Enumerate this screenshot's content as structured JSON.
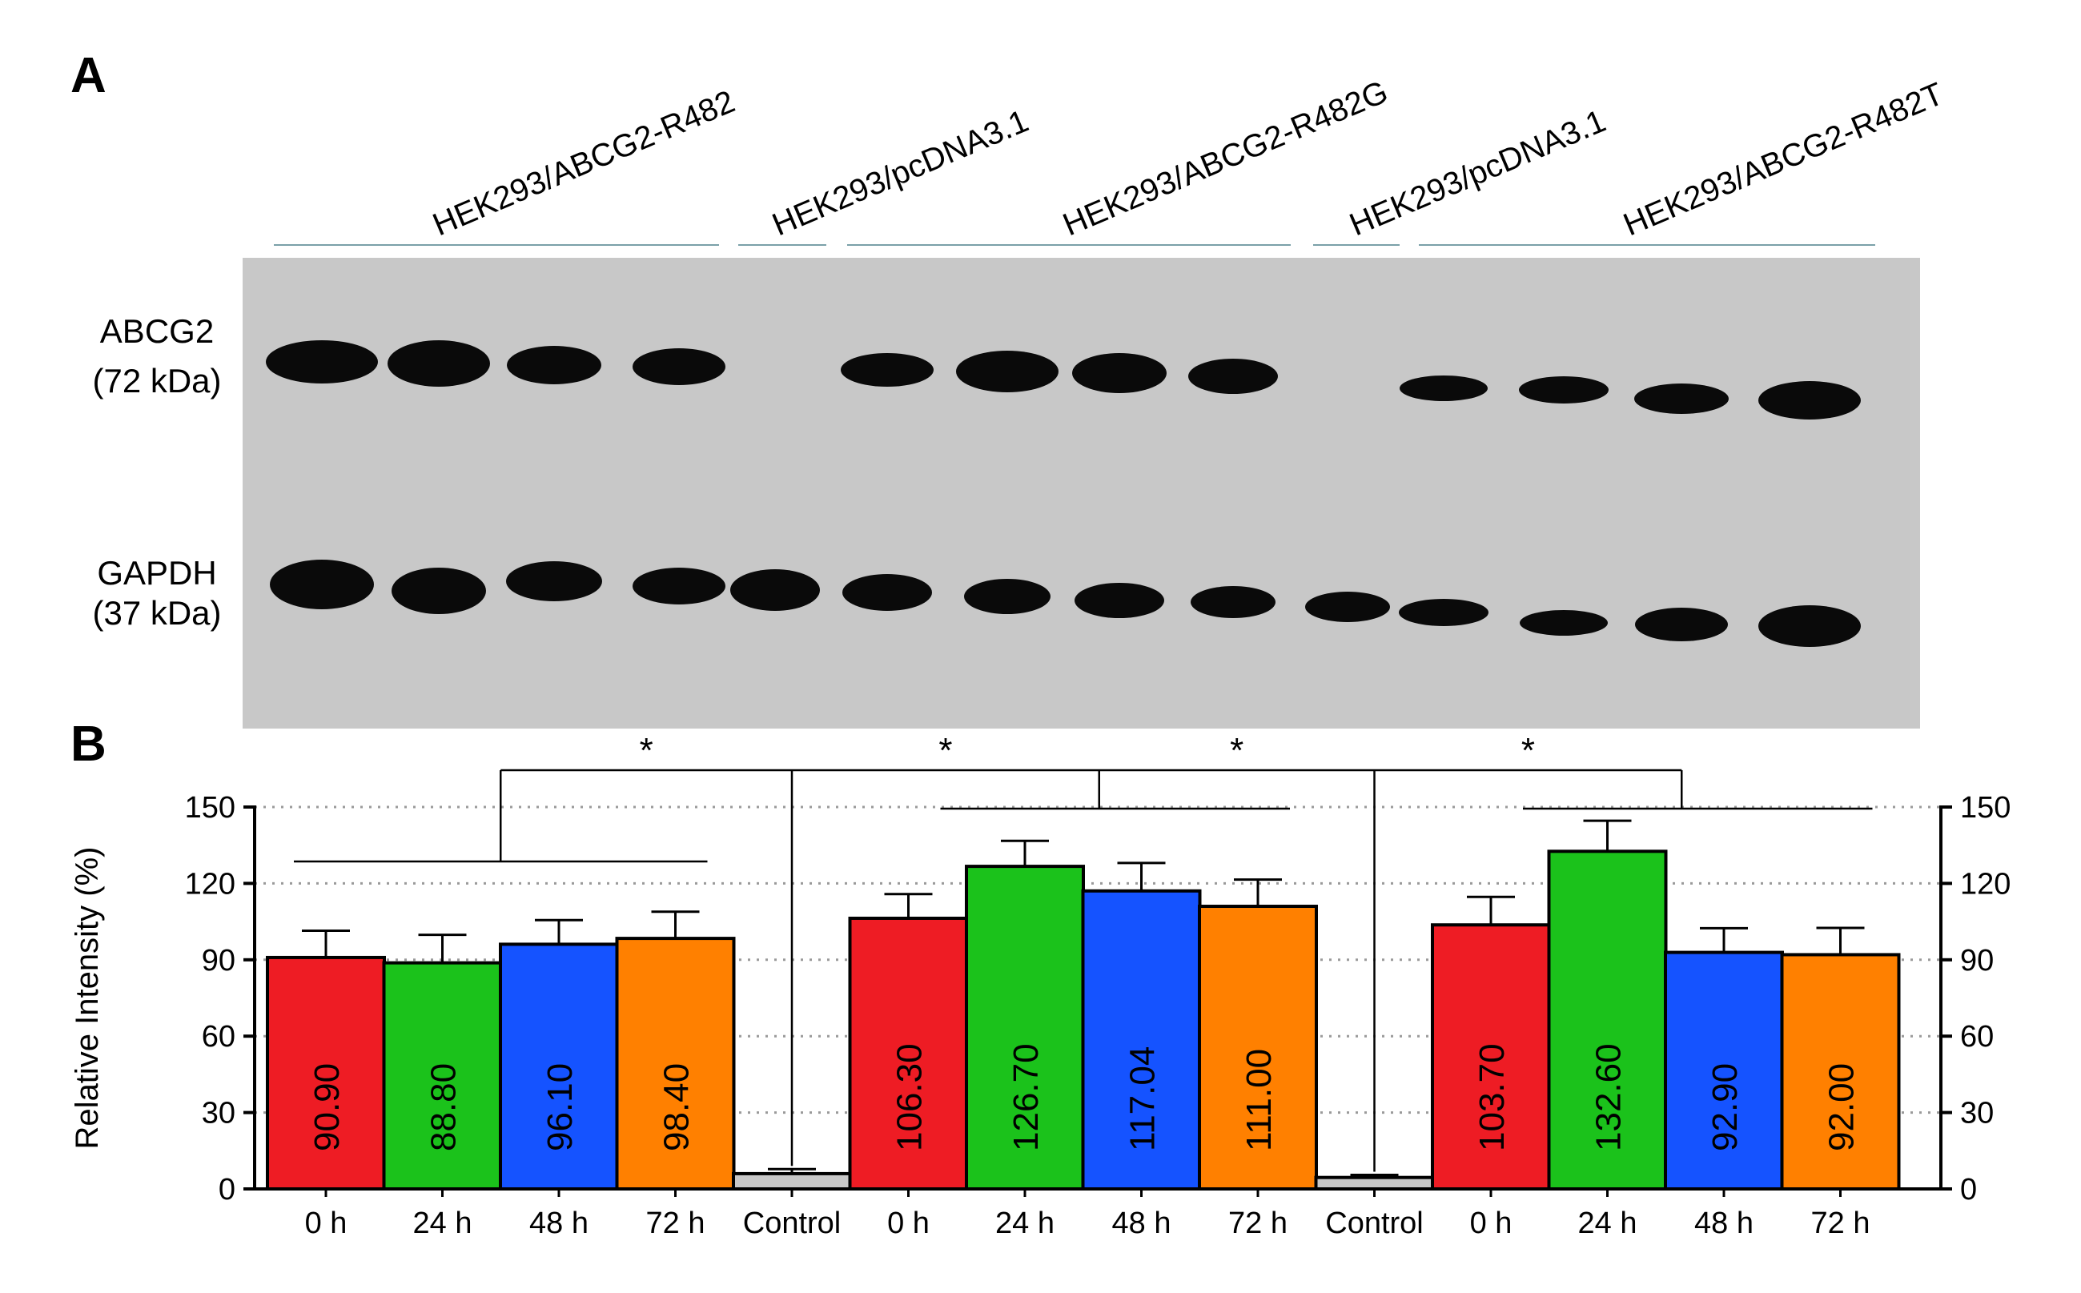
{
  "panel_a": {
    "letter": "A",
    "groups": [
      {
        "label": "HEK293/ABCG2-R482"
      },
      {
        "label": "HEK293/pcDNA3.1"
      },
      {
        "label": "HEK293/ABCG2-R482G"
      },
      {
        "label": "HEK293/pcDNA3.1"
      },
      {
        "label": "HEK293/ABCG2-R482T"
      }
    ],
    "markers": [
      {
        "name": "ABCG2",
        "size": "(72 kDa)"
      },
      {
        "name": "GAPDH",
        "size": "(37 kDa)"
      }
    ],
    "blot": {
      "background": "#c8c8c8",
      "band_color": "#0a0a0a",
      "abcg2_lanes_present": [
        true,
        true,
        true,
        true,
        false,
        true,
        true,
        true,
        true,
        false,
        true,
        true,
        true,
        true
      ],
      "gapdh_lanes_present": [
        true,
        true,
        true,
        true,
        true,
        true,
        true,
        true,
        true,
        true,
        true,
        true,
        true,
        true
      ]
    }
  },
  "panel_b": {
    "letter": "B",
    "significance": [
      "*",
      "*",
      "*",
      "*"
    ]
  },
  "chart_data": {
    "type": "bar",
    "categories": [
      "0 h",
      "24 h",
      "48 h",
      "72 h",
      "Control",
      "0 h",
      "24 h",
      "48 h",
      "72 h",
      "Control",
      "0 h",
      "24 h",
      "48 h",
      "72 h"
    ],
    "values": [
      90.9,
      88.8,
      96.1,
      98.4,
      6.0,
      106.3,
      126.7,
      117.04,
      111.0,
      4.5,
      103.7,
      132.6,
      92.9,
      92.0
    ],
    "value_labels": [
      "90.90",
      "88.80",
      "96.10",
      "98.40",
      "",
      "106.30",
      "126.70",
      "117.04",
      "111.00",
      "",
      "103.70",
      "132.60",
      "92.90",
      "92.00"
    ],
    "errors": [
      10.5,
      11.0,
      9.5,
      10.5,
      1.8,
      9.5,
      10.0,
      11.0,
      10.5,
      1.0,
      11.0,
      12.0,
      9.5,
      10.5
    ],
    "colors": [
      "#ee1c24",
      "#1bc21b",
      "#1553ff",
      "#ff8000",
      "#c8c8c8",
      "#ee1c24",
      "#1bc21b",
      "#1553ff",
      "#ff8000",
      "#c8c8c8",
      "#ee1c24",
      "#1bc21b",
      "#1553ff",
      "#ff8000"
    ],
    "ylabel": "Relative Intensity (%)",
    "ylim": [
      0,
      150
    ],
    "yticks": [
      0,
      30,
      60,
      90,
      120,
      150
    ],
    "right_axis": true,
    "grid": "dotted horizontal"
  }
}
